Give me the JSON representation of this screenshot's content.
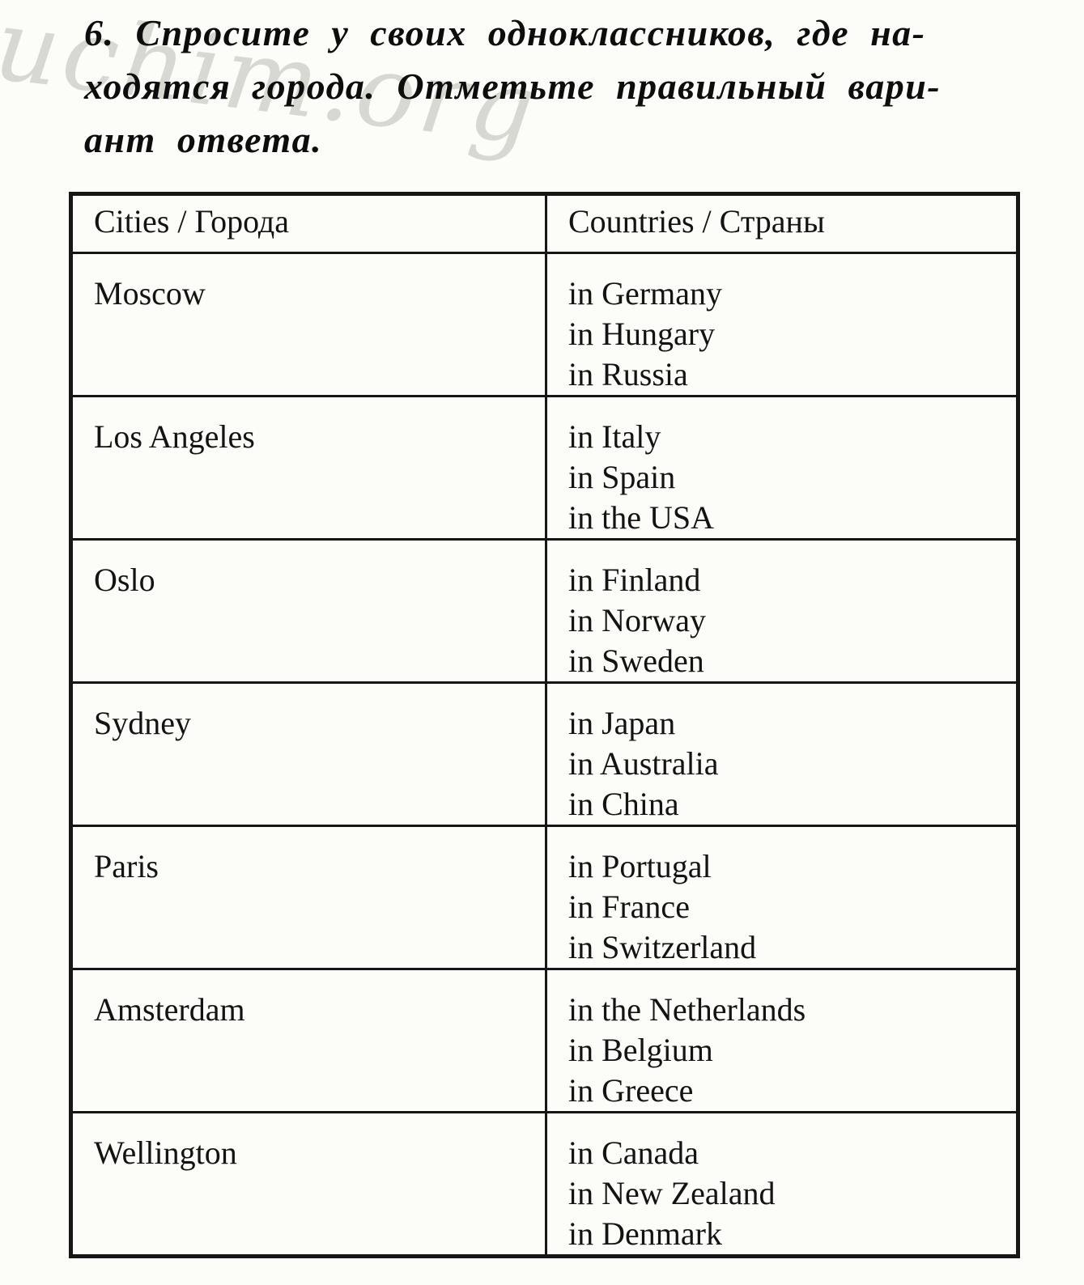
{
  "watermark": {
    "text": "uchim.org"
  },
  "heading": {
    "lines": [
      "6. Спросите у своих одноклассников, где на-",
      "ходятся города. Отметьте правильный вари-",
      "ант ответа."
    ]
  },
  "table": {
    "header": {
      "cities": "Cities / Города",
      "countries": "Countries / Страны"
    },
    "rows": [
      {
        "city": "Moscow",
        "options": [
          "in Germany",
          "in Hungary",
          "in Russia"
        ]
      },
      {
        "city": "Los Angeles",
        "options": [
          "in Italy",
          "in Spain",
          "in the USA"
        ]
      },
      {
        "city": "Oslo",
        "options": [
          "in Finland",
          "in Norway",
          "in Sweden"
        ]
      },
      {
        "city": "Sydney",
        "options": [
          "in Japan",
          "in Australia",
          "in China"
        ]
      },
      {
        "city": "Paris",
        "options": [
          "in Portugal",
          "in France",
          "in Switzerland"
        ]
      },
      {
        "city": "Amsterdam",
        "options": [
          "in the Netherlands",
          "in Belgium",
          "in Greece"
        ]
      },
      {
        "city": "Wellington",
        "options": [
          "in Canada",
          "in New Zealand",
          "in Denmark"
        ]
      }
    ]
  }
}
